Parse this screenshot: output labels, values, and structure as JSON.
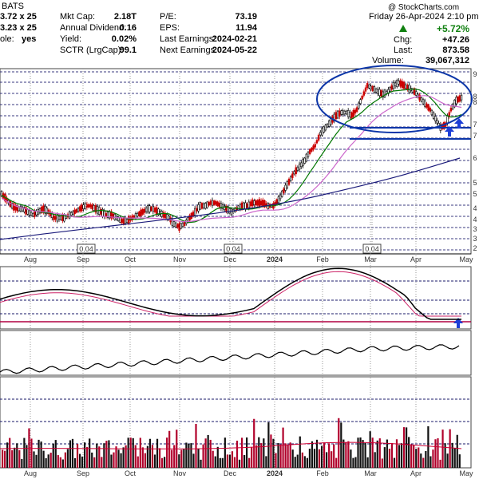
{
  "header": {
    "source": "BATS",
    "left_rows": [
      "3.72 x 25",
      "3.23 x 25",
      "ole:"
    ],
    "optionable_value": "yes",
    "stats": [
      {
        "label": "Mkt Cap:",
        "value": "2.18T"
      },
      {
        "label": "Annual Dividend:",
        "value": "0.16"
      },
      {
        "label": "Yield:",
        "value": "0.02%"
      },
      {
        "label": "SCTR (LrgCap):",
        "value": "99.1"
      }
    ],
    "stats2": [
      {
        "label": "P/E:",
        "value": "73.19"
      },
      {
        "label": "EPS:",
        "value": "11.94"
      },
      {
        "label": "Last Earnings:",
        "value": "2024-02-21"
      },
      {
        "label": "Next Earnings:",
        "value": "2024-05-22"
      }
    ],
    "date_line": "Friday  26-Apr-2024  2:10 pm",
    "change_pct": "+5.72%",
    "chg_label": "Chg:",
    "chg_value": "+47.26",
    "last_label": "Last:",
    "last_value": "873.58",
    "volume_label": "Volume:",
    "volume_value": "39,067,312",
    "watermark": "@ StockCharts.com"
  },
  "colors": {
    "up": "#000000",
    "down": "#cc0000",
    "ma_short": "#007700",
    "ma_mid": "#cc66cc",
    "ma_long": "#1a1a7a",
    "annotation": "#0b35a8",
    "arrow": "#1e3fd6",
    "hline": "#1a1a6a",
    "vol_bar": "#b0002a"
  },
  "icons": {
    "up_triangle": "up-triangle-icon",
    "annotation_arrow": "up-arrow-icon"
  },
  "chart_data": {
    "type": "candlestick",
    "symbol": "",
    "x_tick_labels": [
      "Aug",
      "Sep",
      "Oct",
      "Nov",
      "Dec",
      "2024",
      "Feb",
      "Mar",
      "Apr",
      "May"
    ],
    "dividend_markers": [
      "0.04",
      "0.04",
      "0.04"
    ],
    "right_axis_partial_labels": [
      "9",
      "8",
      "8",
      "7",
      "7",
      "6",
      "5",
      "5",
      "4",
      "4",
      "3",
      "3",
      "2"
    ],
    "price_path": [
      52,
      50,
      48,
      47,
      47,
      46,
      45,
      46,
      47,
      46,
      44,
      44,
      44,
      45,
      46,
      47,
      48,
      48,
      47,
      46,
      45,
      45,
      44,
      43,
      43,
      44,
      45,
      46,
      47,
      47,
      46,
      45,
      44,
      42,
      41,
      42,
      44,
      46,
      48,
      48,
      49,
      49,
      48,
      47,
      46,
      47,
      48,
      48,
      49,
      49,
      49,
      48,
      48,
      50,
      53,
      56,
      59,
      61,
      63,
      66,
      68,
      72,
      74,
      76,
      78,
      79,
      79,
      78,
      80,
      84,
      88,
      87,
      86,
      85,
      86,
      88,
      89,
      88,
      87,
      86,
      84,
      82,
      80,
      77,
      74,
      75,
      80,
      83,
      84
    ],
    "annotation_lines": [
      "upper",
      "middle",
      "lower"
    ],
    "indicator_panel": "oscillator with signal line, crossing baseline",
    "relative_panel": "rising ratio line",
    "volume_panel": "daily volume bars with moving average"
  }
}
